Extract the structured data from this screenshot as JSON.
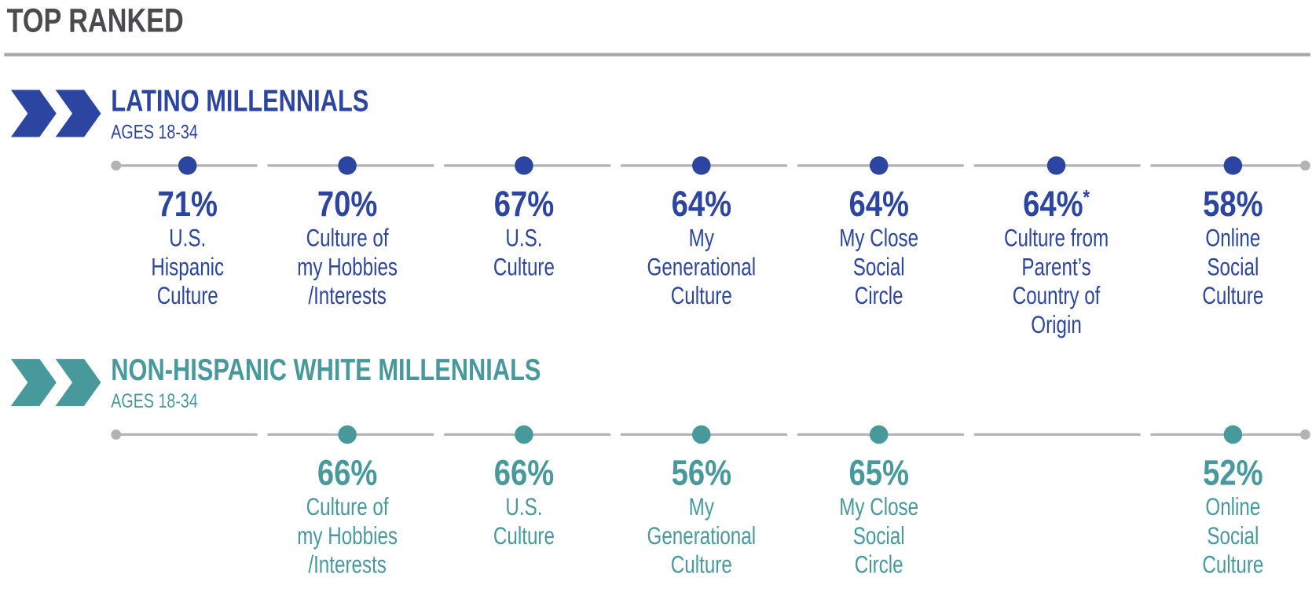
{
  "header": {
    "title": "TOP RANKED"
  },
  "groups": [
    {
      "name": "LATINO MILLENNIALS",
      "subtitle": "AGES 18-34",
      "color": "#2c45a0",
      "items": [
        {
          "value": "71%",
          "label": [
            "U.S.",
            "Hispanic",
            "Culture"
          ]
        },
        {
          "value": "70%",
          "label": [
            "Culture of",
            "my Hobbies",
            "/Interests"
          ]
        },
        {
          "value": "67%",
          "label": [
            "U.S.",
            "Culture"
          ]
        },
        {
          "value": "64%",
          "label": [
            "My",
            "Generational",
            "Culture"
          ]
        },
        {
          "value": "64%",
          "label": [
            "My Close",
            "Social",
            "Circle"
          ]
        },
        {
          "value": "64%",
          "note": "*",
          "label": [
            "Culture from",
            "Parent’s",
            "Country of",
            "Origin"
          ]
        },
        {
          "value": "58%",
          "label": [
            "Online",
            "Social",
            "Culture"
          ]
        }
      ]
    },
    {
      "name": "NON-HISPANIC WHITE MILLENNIALS",
      "subtitle": "AGES 18-34",
      "color": "#47999b",
      "items": [
        null,
        {
          "value": "66%",
          "label": [
            "Culture of",
            "my Hobbies",
            "/Interests"
          ]
        },
        {
          "value": "66%",
          "label": [
            "U.S.",
            "Culture"
          ]
        },
        {
          "value": "56%",
          "label": [
            "My",
            "Generational",
            "Culture"
          ]
        },
        {
          "value": "65%",
          "label": [
            "My Close",
            "Social",
            "Circle"
          ]
        },
        null,
        {
          "value": "52%",
          "label": [
            "Online",
            "Social",
            "Culture"
          ]
        }
      ]
    }
  ]
}
